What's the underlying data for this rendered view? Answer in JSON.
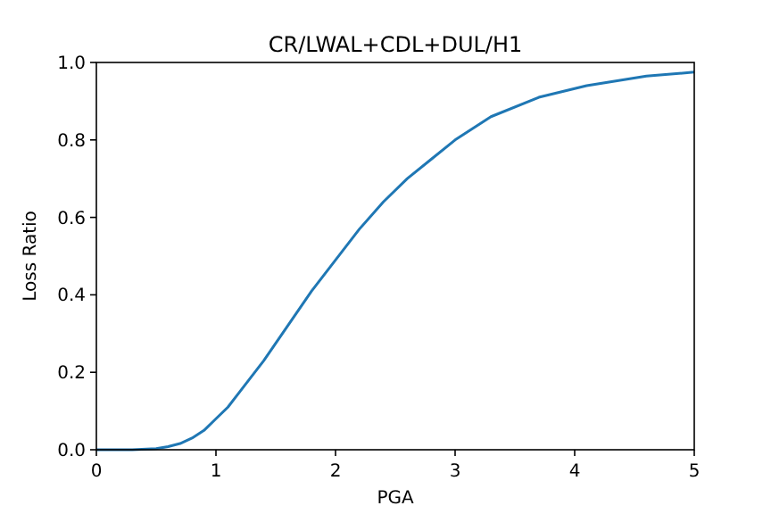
{
  "chart_data": {
    "type": "line",
    "title": "CR/LWAL+CDL+DUL/H1",
    "xlabel": "PGA",
    "ylabel": "Loss Ratio",
    "x": [
      0,
      0.3,
      0.5,
      0.6,
      0.7,
      0.8,
      0.9,
      1.0,
      1.1,
      1.2,
      1.4,
      1.6,
      1.8,
      2.0,
      2.2,
      2.4,
      2.6,
      2.8,
      3.0,
      3.3,
      3.7,
      4.1,
      4.6,
      5.0
    ],
    "series": [
      {
        "color": "#1f77b4",
        "values": [
          0,
          0,
          0.003,
          0.008,
          0.016,
          0.03,
          0.05,
          0.08,
          0.11,
          0.15,
          0.23,
          0.32,
          0.41,
          0.49,
          0.57,
          0.64,
          0.7,
          0.75,
          0.8,
          0.86,
          0.91,
          0.94,
          0.965,
          0.975
        ]
      }
    ],
    "xlim": [
      0,
      5
    ],
    "ylim": [
      0,
      1
    ],
    "xticks": [
      0,
      1,
      2,
      3,
      4,
      5
    ],
    "yticks": [
      {
        "value": 0,
        "label": "0.0"
      },
      {
        "value": 0.2,
        "label": "0.2"
      },
      {
        "value": 0.4,
        "label": "0.4"
      },
      {
        "value": 0.6,
        "label": "0.6"
      },
      {
        "value": 0.8,
        "label": "0.8"
      },
      {
        "value": 1,
        "label": "1.0"
      }
    ]
  }
}
